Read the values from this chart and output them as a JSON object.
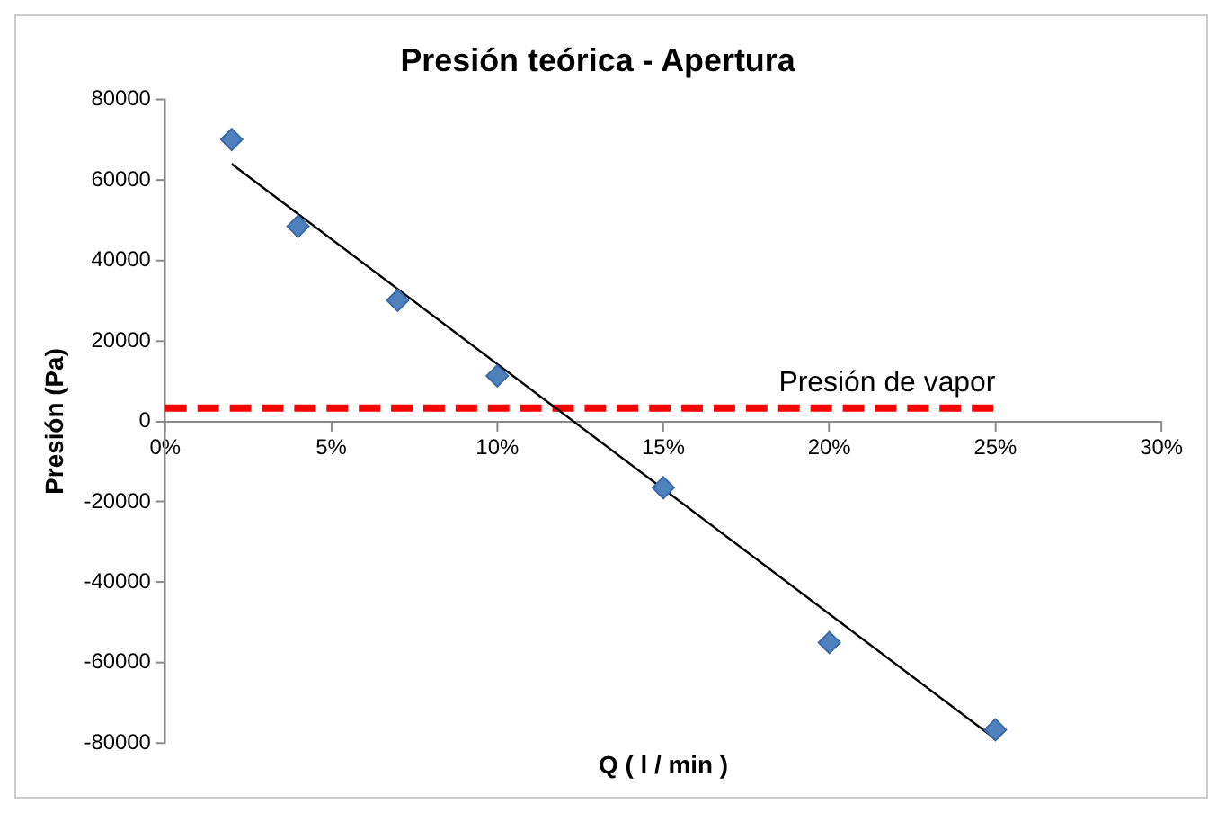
{
  "chart_data": {
    "type": "scatter",
    "title": "Presión teórica - Apertura",
    "xlabel": "Q ( l / min )",
    "ylabel": "Presión (Pa)",
    "xlim": [
      0,
      0.3
    ],
    "xticks": [
      {
        "value": 0,
        "label": "0%"
      },
      {
        "value": 0.05,
        "label": "5%"
      },
      {
        "value": 0.1,
        "label": "10%"
      },
      {
        "value": 0.15,
        "label": "15%"
      },
      {
        "value": 0.2,
        "label": "20%"
      },
      {
        "value": 0.25,
        "label": "25%"
      },
      {
        "value": 0.3,
        "label": "30%"
      }
    ],
    "ylim": [
      -80000,
      80000
    ],
    "yticks": [
      -80000,
      -60000,
      -40000,
      -20000,
      0,
      20000,
      40000,
      60000,
      80000
    ],
    "grid": false,
    "legend": false,
    "series": [
      {
        "color": "#4f81bd",
        "marker": "diamond",
        "x": [
          0.02,
          0.04,
          0.07,
          0.1,
          0.15,
          0.2,
          0.25
        ],
        "values": [
          70100,
          48500,
          30100,
          11300,
          -16500,
          -55000,
          -76700
        ]
      },
      {
        "type": "line",
        "color": "#000000",
        "marker": "none",
        "line_style": "solid",
        "x": [
          0.02,
          0.25
        ],
        "values": [
          64000,
          -79000
        ]
      },
      {
        "type": "line",
        "name": "Presión de vapor",
        "color": "#ff0000",
        "marker": "none",
        "line_style": "dashed",
        "x": [
          0,
          0.25
        ],
        "values": [
          3300,
          3300
        ]
      }
    ]
  }
}
